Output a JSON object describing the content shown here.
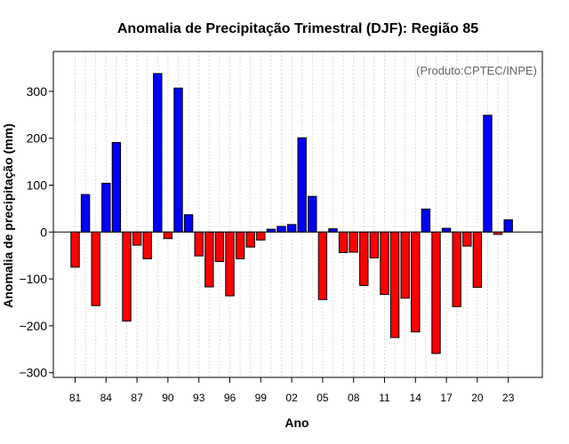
{
  "chart_data": {
    "type": "bar",
    "title": "Anomalia de Precipitação Trimestral (DJF): Região 85",
    "xlabel": "Ano",
    "ylabel": "Anomalia de precipitação (mm)",
    "credit": "(Produto:CPTEC/INPE)",
    "ylim": [
      -310,
      385
    ],
    "yticks": [
      -300,
      -200,
      -100,
      0,
      100,
      200,
      300
    ],
    "ytick_labels": [
      "−300",
      "−200",
      "−100",
      "0",
      "100",
      "200",
      "300"
    ],
    "first_year": 1981,
    "xtick_labels": [
      "81",
      "84",
      "87",
      "90",
      "93",
      "96",
      "99",
      "02",
      "05",
      "08",
      "11",
      "14",
      "17",
      "20",
      "23"
    ],
    "xtick_years": [
      1981,
      1984,
      1987,
      1990,
      1993,
      1996,
      1999,
      2002,
      2005,
      2008,
      2011,
      2014,
      2017,
      2020,
      2023
    ],
    "grid": true,
    "colors": {
      "positive": "#0000ff",
      "negative": "#ff0000"
    },
    "values": [
      -75,
      80,
      -157,
      104,
      191,
      -190,
      -28,
      -57,
      338,
      -14,
      307,
      37,
      -51,
      -117,
      -63,
      -136,
      -57,
      -32,
      -17,
      6,
      12,
      16,
      201,
      76,
      -144,
      7,
      -44,
      -43,
      -114,
      -55,
      -133,
      -225,
      -141,
      -213,
      49,
      -259,
      8,
      -159,
      -30,
      -118,
      249,
      -5,
      26
    ]
  }
}
